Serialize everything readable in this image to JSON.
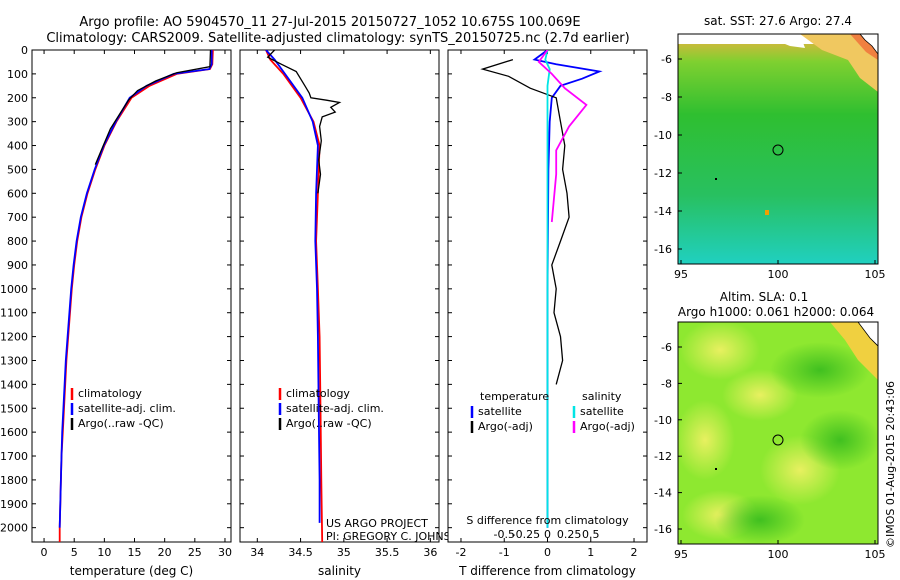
{
  "header": {
    "line1": "Argo profile: AO 5904570_11 27-Jul-2015 20150727_1052 10.675S 100.069E",
    "line2": "Climatology: CARS2009. Satellite-adjusted climatology: synTS_20150725.nc (2.7d earlier)"
  },
  "colors": {
    "climatology": "#ff0000",
    "satellite": "#0000ff",
    "argo": "#000000",
    "salinity_satellite": "#00e5e5",
    "salinity_argo": "#ff00ff"
  },
  "depth_ticks": [
    0,
    100,
    200,
    300,
    400,
    500,
    600,
    700,
    800,
    900,
    1000,
    1100,
    1200,
    1300,
    1400,
    1500,
    1600,
    1700,
    1800,
    1900,
    2000
  ],
  "chart_data": [
    {
      "type": "line",
      "id": "temperature",
      "xlabel": "temperature (deg C)",
      "xlim": [
        -2,
        31
      ],
      "ylim": [
        2060,
        0
      ],
      "xticks": [
        0,
        5,
        10,
        15,
        20,
        25,
        30
      ],
      "xtick_labels": [
        "0",
        "5",
        "10",
        "15",
        "20",
        "25",
        "30"
      ],
      "legend": {
        "placement": "lower-left",
        "entries": [
          "climatology",
          "satellite-adj. clim.",
          "Argo(..raw -QC)"
        ]
      },
      "series": [
        {
          "name": "climatology",
          "color": "#ff0000",
          "points": [
            [
              28,
              0
            ],
            [
              27.9,
              60
            ],
            [
              27.5,
              80
            ],
            [
              22,
              100
            ],
            [
              17.5,
              150
            ],
            [
              14.5,
              200
            ],
            [
              12,
              300
            ],
            [
              10,
              400
            ],
            [
              8.5,
              500
            ],
            [
              7.2,
              600
            ],
            [
              6.2,
              700
            ],
            [
              5.5,
              800
            ],
            [
              5,
              900
            ],
            [
              4.6,
              1000
            ],
            [
              4.3,
              1100
            ],
            [
              4.0,
              1200
            ],
            [
              3.7,
              1300
            ],
            [
              3.5,
              1400
            ],
            [
              3.3,
              1500
            ],
            [
              3.1,
              1600
            ],
            [
              2.9,
              1700
            ],
            [
              2.8,
              1800
            ],
            [
              2.7,
              1900
            ],
            [
              2.6,
              2000
            ],
            [
              2.6,
              2060
            ]
          ]
        },
        {
          "name": "satellite-adj. clim.",
          "color": "#0000ff",
          "points": [
            [
              27.8,
              0
            ],
            [
              27.8,
              60
            ],
            [
              27.4,
              80
            ],
            [
              21.5,
              100
            ],
            [
              17,
              150
            ],
            [
              14.2,
              200
            ],
            [
              11.9,
              300
            ],
            [
              9.9,
              400
            ],
            [
              8.4,
              500
            ],
            [
              7.1,
              600
            ],
            [
              6.1,
              700
            ],
            [
              5.4,
              800
            ],
            [
              4.9,
              900
            ],
            [
              4.5,
              1000
            ],
            [
              4.2,
              1100
            ],
            [
              3.9,
              1200
            ],
            [
              3.6,
              1300
            ],
            [
              3.4,
              1400
            ],
            [
              3.2,
              1500
            ],
            [
              3.0,
              1600
            ],
            [
              2.9,
              1700
            ],
            [
              2.8,
              1800
            ],
            [
              2.7,
              1900
            ],
            [
              2.6,
              2000
            ]
          ]
        },
        {
          "name": "Argo(..raw -QC)",
          "color": "#000000",
          "points": [
            [
              27.6,
              0
            ],
            [
              27.5,
              70
            ],
            [
              22,
              95
            ],
            [
              18.5,
              130
            ],
            [
              15.5,
              170
            ],
            [
              14,
              210
            ],
            [
              12.5,
              270
            ],
            [
              11,
              330
            ],
            [
              9.5,
              420
            ],
            [
              8.5,
              480
            ]
          ]
        }
      ]
    },
    {
      "type": "line",
      "id": "salinity",
      "xlabel": "salinity",
      "xlim": [
        33.8,
        36.1
      ],
      "ylim": [
        2060,
        0
      ],
      "xticks": [
        34,
        34.5,
        35,
        35.5,
        36
      ],
      "xtick_labels": [
        "34",
        "34.5",
        "35",
        "35.5",
        "36"
      ],
      "legend": {
        "placement": "lower-left",
        "entries": [
          "climatology",
          "satellite-adj. clim.",
          "Argo(..raw -QC)"
        ]
      },
      "annotations": [
        "US ARGO PROJECT",
        "PI: GREGORY C. JOHNSON"
      ],
      "series": [
        {
          "name": "climatology",
          "color": "#ff0000",
          "points": [
            [
              34.1,
              0
            ],
            [
              34.15,
              40
            ],
            [
              34.3,
              100
            ],
            [
              34.5,
              200
            ],
            [
              34.65,
              300
            ],
            [
              34.72,
              400
            ],
            [
              34.7,
              600
            ],
            [
              34.68,
              800
            ],
            [
              34.7,
              1000
            ],
            [
              34.72,
              1200
            ],
            [
              34.73,
              1500
            ],
            [
              34.74,
              1800
            ],
            [
              34.75,
              2060
            ]
          ]
        },
        {
          "name": "satellite-adj. clim.",
          "color": "#0000ff",
          "points": [
            [
              34.1,
              0
            ],
            [
              34.2,
              40
            ],
            [
              34.32,
              100
            ],
            [
              34.52,
              200
            ],
            [
              34.64,
              300
            ],
            [
              34.7,
              400
            ],
            [
              34.68,
              600
            ],
            [
              34.67,
              800
            ],
            [
              34.69,
              1000
            ],
            [
              34.7,
              1200
            ],
            [
              34.71,
              1500
            ],
            [
              34.72,
              1800
            ],
            [
              34.72,
              1980
            ]
          ]
        },
        {
          "name": "Argo(..raw -QC)",
          "color": "#000000",
          "points": [
            [
              34.2,
              0
            ],
            [
              34.12,
              30
            ],
            [
              34.28,
              60
            ],
            [
              34.45,
              90
            ],
            [
              34.55,
              150
            ],
            [
              34.6,
              180
            ],
            [
              34.62,
              200
            ],
            [
              34.8,
              210
            ],
            [
              34.95,
              220
            ],
            [
              34.85,
              240
            ],
            [
              34.9,
              260
            ],
            [
              34.75,
              280
            ],
            [
              34.72,
              320
            ],
            [
              34.74,
              380
            ],
            [
              34.71,
              460
            ],
            [
              34.73,
              520
            ],
            [
              34.7,
              600
            ]
          ]
        }
      ]
    },
    {
      "type": "line",
      "id": "difference",
      "xlabel": "T difference from climatology",
      "xlabel_top": "S difference from climatology",
      "xlim": [
        -2.3,
        2.3
      ],
      "ylim": [
        2060,
        0
      ],
      "xticks": [
        -2,
        -1,
        0,
        1,
        2
      ],
      "xtick_labels": [
        "-2",
        "-1",
        "0",
        "1",
        "2"
      ],
      "s_tick_labels": [
        "-0.5",
        "-0.25",
        "0",
        "0.25",
        "0.5"
      ],
      "legend": {
        "placement": "lower-center",
        "temperature_title": "temperature",
        "salinity_title": "salinity",
        "entries": [
          "satellite",
          "Argo(-adj)",
          "satellite",
          "Argo(-adj)"
        ]
      },
      "series": [
        {
          "name": "satellite",
          "color": "#0000ff",
          "points": [
            [
              0,
              0
            ],
            [
              -0.3,
              40
            ],
            [
              0.2,
              60
            ],
            [
              1.2,
              90
            ],
            [
              0.8,
              120
            ],
            [
              0.3,
              150
            ],
            [
              0.1,
              200
            ],
            [
              0.05,
              300
            ],
            [
              0.02,
              500
            ],
            [
              0,
              1000
            ],
            [
              0,
              2000
            ]
          ]
        },
        {
          "name": "Argo(-adj)",
          "color": "#000000",
          "points": [
            [
              -0.8,
              40
            ],
            [
              -1.5,
              80
            ],
            [
              -0.9,
              110
            ],
            [
              -0.4,
              160
            ],
            [
              0.2,
              200
            ],
            [
              0.3,
              300
            ],
            [
              0.4,
              400
            ],
            [
              0.35,
              500
            ],
            [
              0.45,
              600
            ],
            [
              0.5,
              700
            ],
            [
              0.3,
              800
            ],
            [
              0.1,
              900
            ],
            [
              0.2,
              1000
            ],
            [
              0.15,
              1100
            ],
            [
              0.3,
              1200
            ],
            [
              0.35,
              1300
            ],
            [
              0.2,
              1400
            ]
          ]
        },
        {
          "name": "satellite",
          "color": "#00e5e5",
          "points": [
            [
              0,
              0
            ],
            [
              -0.05,
              40
            ],
            [
              0.05,
              80
            ],
            [
              0,
              150
            ],
            [
              0,
              500
            ],
            [
              0,
              1000
            ],
            [
              0,
              2000
            ]
          ]
        },
        {
          "name": "Argo(-adj)",
          "color": "#ff00ff",
          "points": [
            [
              0,
              0
            ],
            [
              -0.2,
              50
            ],
            [
              0.1,
              100
            ],
            [
              0.4,
              160
            ],
            [
              0.9,
              230
            ],
            [
              0.5,
              320
            ],
            [
              0.2,
              420
            ],
            [
              0.2,
              520
            ],
            [
              0.15,
              620
            ],
            [
              0.1,
              720
            ]
          ]
        }
      ]
    }
  ],
  "maps": [
    {
      "id": "sst-map",
      "title": "sat. SST: 27.6 Argo: 27.4",
      "yticks": [
        "-6",
        "-8",
        "-10",
        "-12",
        "-14",
        "-16"
      ],
      "xticks": [
        "95",
        "100",
        "105"
      ]
    },
    {
      "id": "sla-map",
      "title_line1": "Altim. SLA: 0.1",
      "title_line2": "Argo h1000: 0.061 h2000: 0.064",
      "yticks": [
        "-6",
        "-8",
        "-10",
        "-12",
        "-14",
        "-16"
      ],
      "xticks": [
        "95",
        "100",
        "105"
      ]
    }
  ],
  "footer": {
    "stamp": "©IMOS 01-Aug-2015 20:43:06"
  }
}
